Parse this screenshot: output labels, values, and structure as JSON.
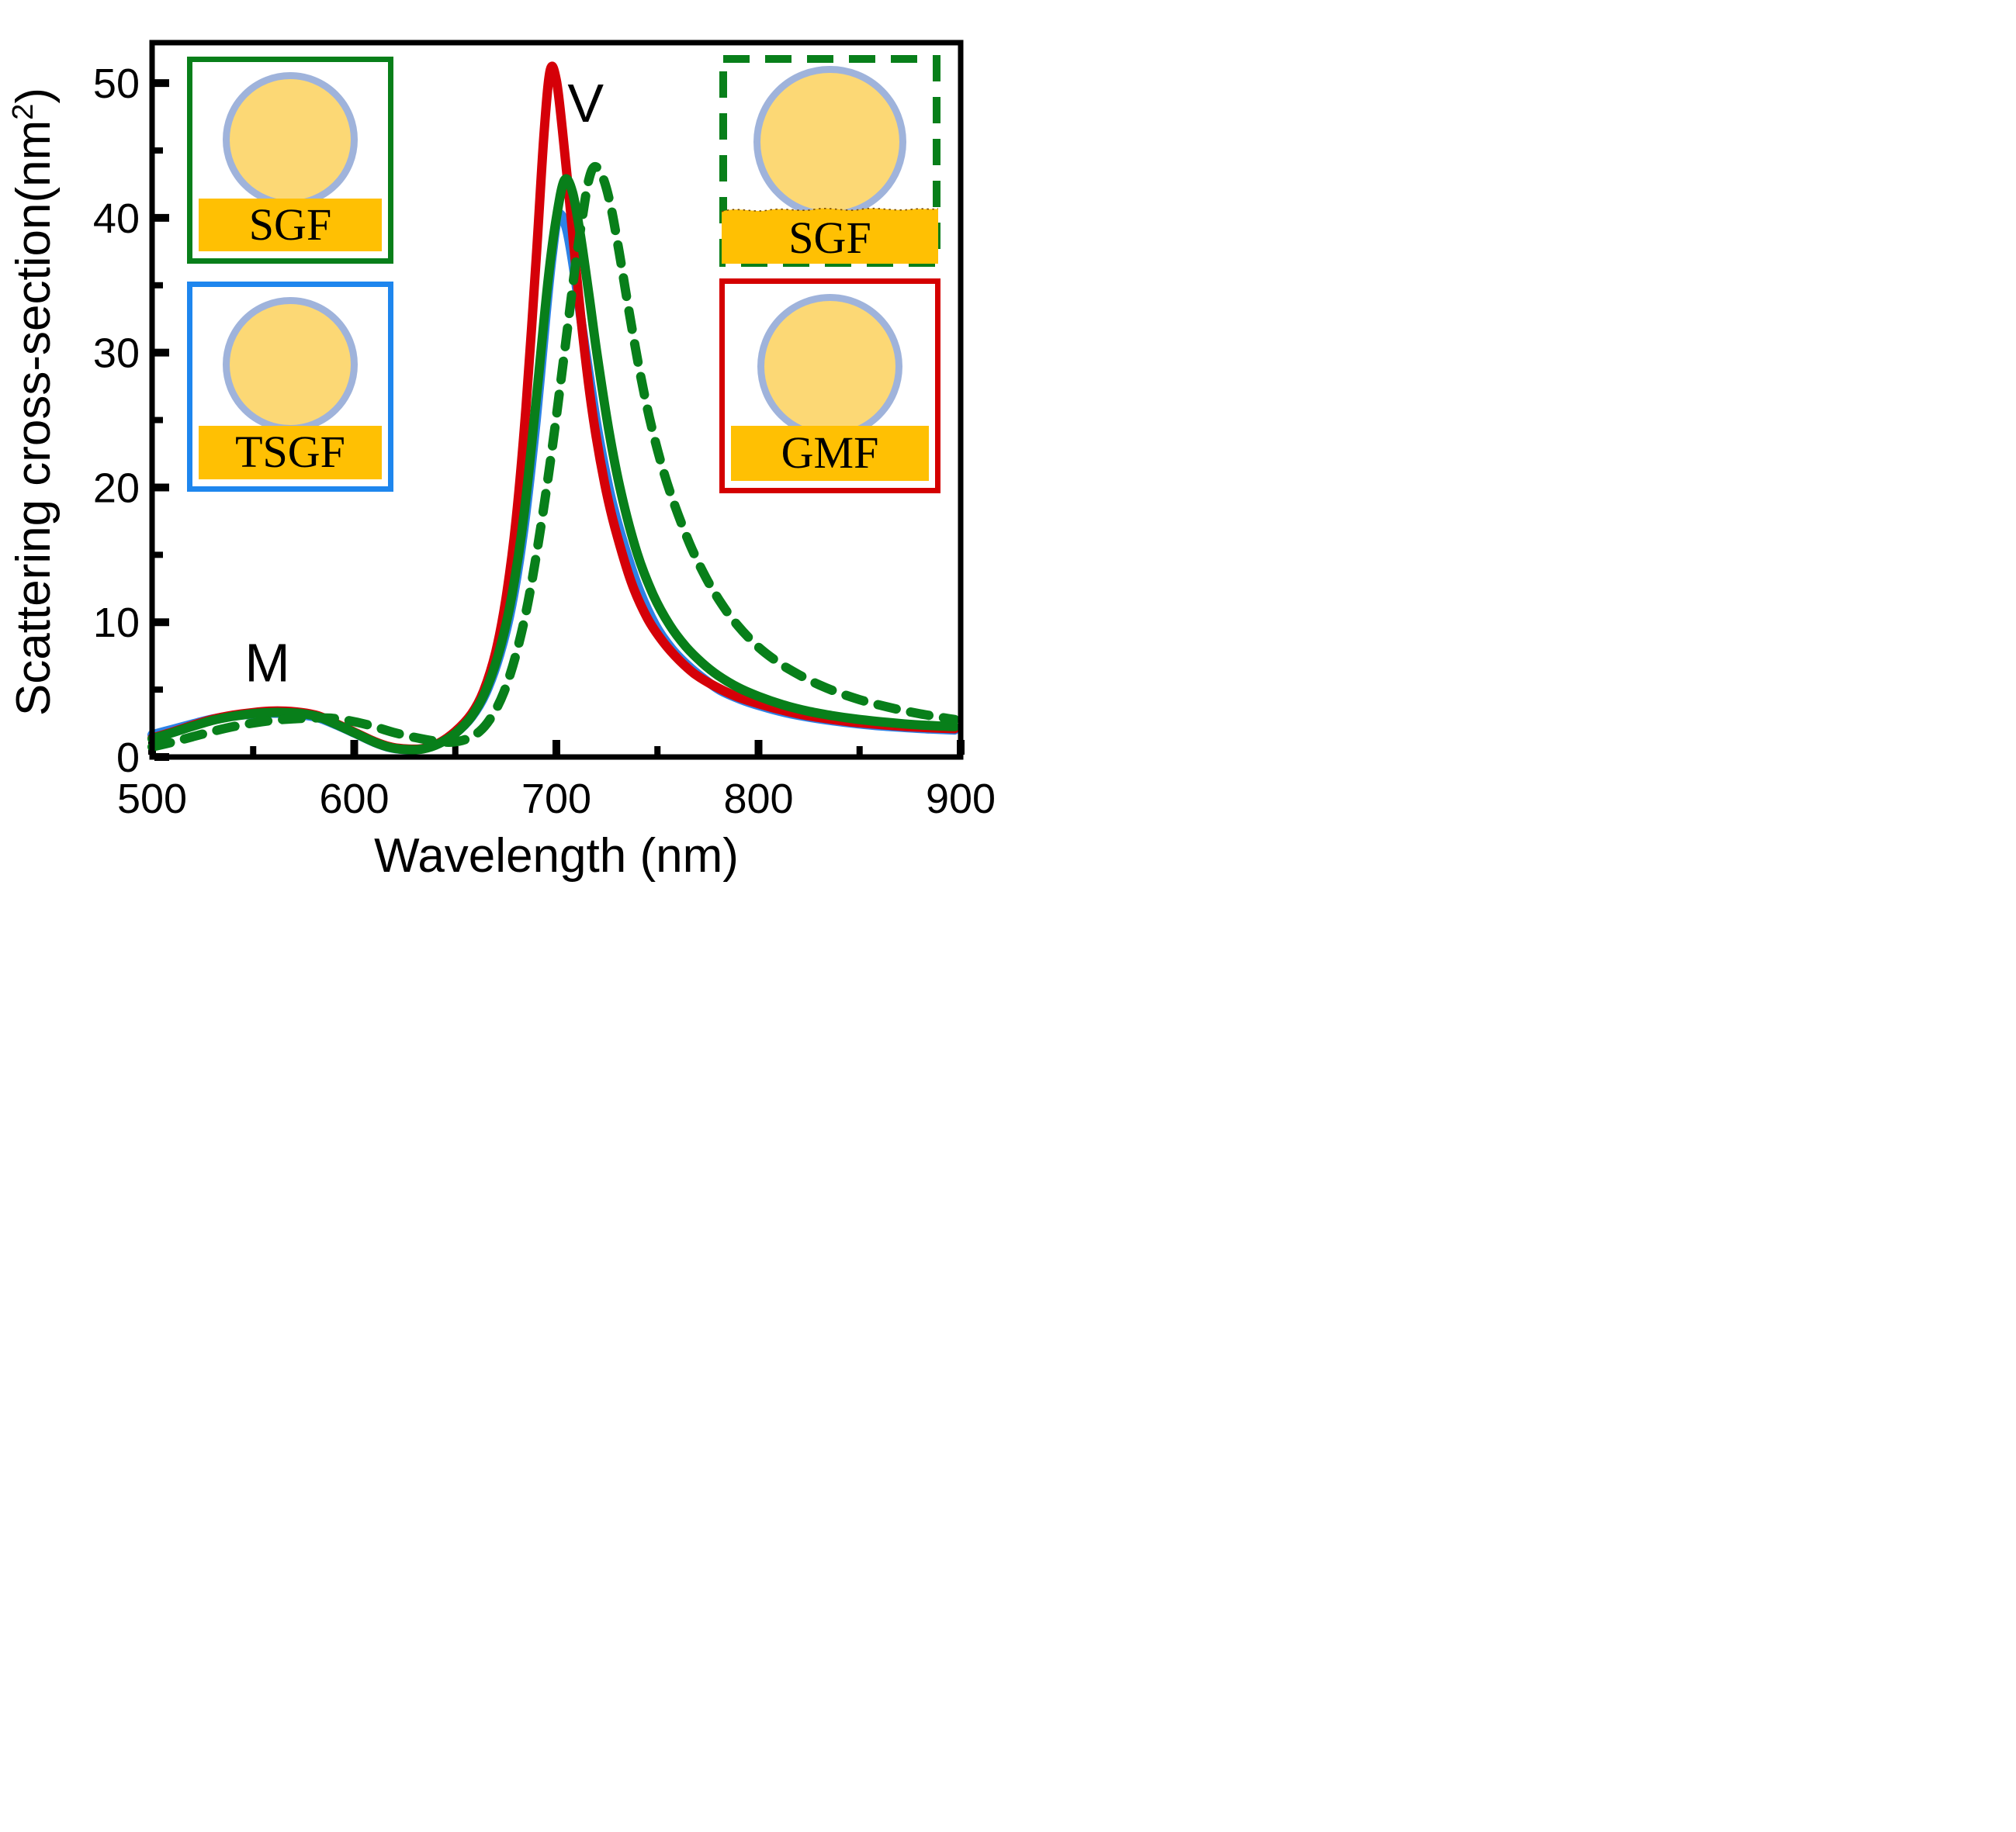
{
  "labels": {
    "xlabel": "Wavelength (nm)",
    "ylabel_main": "Scattering cross-section(nm",
    "ylabel_sup": "2",
    "ylabel_close": ")"
  },
  "colors": {
    "curve_red": "#D50008",
    "curve_green": "#087F1A",
    "curve_blue": "#2D82E6",
    "axis": "#000000",
    "particle_fill": "#FCD875",
    "particle_outline": "#9FB3DB",
    "gold_film": "#FFC003",
    "inset_border_green": "#087F1A",
    "inset_border_blue": "#1E86EE",
    "inset_border_red": "#D40000"
  },
  "insets": [
    {
      "id": "sgf-flat",
      "label": "SGF",
      "border_color": "#087F1A",
      "border_style": "solid",
      "substrate": "flat gold film"
    },
    {
      "id": "tsgf",
      "label": "TSGF",
      "border_color": "#1E86EE",
      "border_style": "solid",
      "substrate": "flat gold film"
    },
    {
      "id": "sgf-rough",
      "label": "SGF",
      "border_color": "#087F1A",
      "border_style": "dashed",
      "substrate": "rough gold film (wavy top edge)"
    },
    {
      "id": "gmf",
      "label": "GMF",
      "border_color": "#D40000",
      "border_style": "solid",
      "substrate": "flat gold film"
    }
  ],
  "chart_data": {
    "type": "line",
    "title": "",
    "xlabel": "Wavelength (nm)",
    "ylabel": "Scattering cross-section(nm2)",
    "xlim": [
      500,
      900
    ],
    "ylim": [
      0,
      53
    ],
    "grid": false,
    "legend_position": "none",
    "x_ticks": [
      500,
      600,
      700,
      800,
      900
    ],
    "x_minor_ticks": [
      550,
      650,
      750,
      850
    ],
    "y_ticks": [
      0,
      10,
      20,
      30,
      40,
      50
    ],
    "y_minor_ticks": [
      5,
      15,
      25,
      35,
      45
    ],
    "annotations": [
      {
        "text": "V",
        "x": 714.5,
        "y": 48.5
      },
      {
        "text": "M",
        "x": 557,
        "y": 7.0
      }
    ],
    "series": [
      {
        "id": "tsgf",
        "name": "TSGF",
        "color": "#2D82E6",
        "line_style": "solid",
        "points": [
          [
            500,
            1.65
          ],
          [
            510,
            2.05
          ],
          [
            520,
            2.45
          ],
          [
            530,
            2.82
          ],
          [
            540,
            3.05
          ],
          [
            550,
            3.18
          ],
          [
            558,
            3.25
          ],
          [
            566,
            3.22
          ],
          [
            574,
            3.12
          ],
          [
            582,
            2.92
          ],
          [
            590,
            2.45
          ],
          [
            600,
            1.78
          ],
          [
            610,
            1.08
          ],
          [
            618,
            0.68
          ],
          [
            626,
            0.55
          ],
          [
            634,
            0.62
          ],
          [
            642,
            1.0
          ],
          [
            650,
            1.75
          ],
          [
            658,
            2.95
          ],
          [
            665,
            4.7
          ],
          [
            672,
            7.6
          ],
          [
            678,
            11.3
          ],
          [
            684,
            17.0
          ],
          [
            690,
            25.0
          ],
          [
            695,
            33.0
          ],
          [
            698,
            37.3
          ],
          [
            701,
            40.2
          ],
          [
            705,
            39.2
          ],
          [
            709,
            35.8
          ],
          [
            713,
            31.6
          ],
          [
            717,
            27.6
          ],
          [
            721,
            23.8
          ],
          [
            727,
            19.3
          ],
          [
            733,
            16.0
          ],
          [
            741,
            12.4
          ],
          [
            749,
            9.8
          ],
          [
            757,
            8.05
          ],
          [
            765,
            6.8
          ],
          [
            773,
            5.8
          ],
          [
            781,
            4.95
          ],
          [
            791,
            4.28
          ],
          [
            801,
            3.78
          ],
          [
            813,
            3.3
          ],
          [
            825,
            2.95
          ],
          [
            837,
            2.68
          ],
          [
            849,
            2.47
          ],
          [
            861,
            2.3
          ],
          [
            873,
            2.18
          ],
          [
            885,
            2.08
          ],
          [
            897,
            2.0
          ]
        ]
      },
      {
        "id": "gmf",
        "name": "GMF",
        "color": "#D50008",
        "line_style": "solid",
        "points": [
          [
            500,
            1.4
          ],
          [
            510,
            1.85
          ],
          [
            520,
            2.35
          ],
          [
            530,
            2.8
          ],
          [
            540,
            3.1
          ],
          [
            550,
            3.3
          ],
          [
            558,
            3.4
          ],
          [
            566,
            3.4
          ],
          [
            574,
            3.3
          ],
          [
            582,
            3.06
          ],
          [
            590,
            2.55
          ],
          [
            600,
            1.85
          ],
          [
            610,
            1.15
          ],
          [
            618,
            0.75
          ],
          [
            626,
            0.6
          ],
          [
            634,
            0.63
          ],
          [
            642,
            1.05
          ],
          [
            650,
            1.9
          ],
          [
            658,
            3.2
          ],
          [
            664,
            4.9
          ],
          [
            670,
            7.8
          ],
          [
            675,
            11.7
          ],
          [
            680,
            17.5
          ],
          [
            685,
            26.0
          ],
          [
            690,
            37.0
          ],
          [
            694,
            46.5
          ],
          [
            697,
            51.0
          ],
          [
            700,
            50.2
          ],
          [
            703,
            46.5
          ],
          [
            707,
            40.5
          ],
          [
            711,
            34.2
          ],
          [
            715,
            28.8
          ],
          [
            719,
            24.4
          ],
          [
            724,
            20.2
          ],
          [
            729,
            17.0
          ],
          [
            737,
            13.0
          ],
          [
            745,
            10.3
          ],
          [
            753,
            8.5
          ],
          [
            761,
            7.15
          ],
          [
            769,
            6.1
          ],
          [
            779,
            5.2
          ],
          [
            789,
            4.5
          ],
          [
            799,
            4.0
          ],
          [
            811,
            3.5
          ],
          [
            823,
            3.1
          ],
          [
            835,
            2.82
          ],
          [
            847,
            2.58
          ],
          [
            859,
            2.42
          ],
          [
            871,
            2.28
          ],
          [
            883,
            2.18
          ],
          [
            897,
            2.1
          ]
        ]
      },
      {
        "id": "sgf",
        "name": "SGF",
        "color": "#087F1A",
        "line_style": "solid",
        "points": [
          [
            500,
            1.35
          ],
          [
            510,
            1.8
          ],
          [
            520,
            2.28
          ],
          [
            530,
            2.72
          ],
          [
            540,
            3.02
          ],
          [
            550,
            3.22
          ],
          [
            558,
            3.3
          ],
          [
            566,
            3.3
          ],
          [
            574,
            3.22
          ],
          [
            582,
            3.0
          ],
          [
            590,
            2.5
          ],
          [
            600,
            1.8
          ],
          [
            610,
            1.1
          ],
          [
            618,
            0.7
          ],
          [
            626,
            0.55
          ],
          [
            634,
            0.6
          ],
          [
            642,
            1.0
          ],
          [
            650,
            1.75
          ],
          [
            658,
            3.0
          ],
          [
            665,
            4.9
          ],
          [
            672,
            8.0
          ],
          [
            678,
            12.0
          ],
          [
            684,
            18.0
          ],
          [
            690,
            26.5
          ],
          [
            696,
            35.5
          ],
          [
            700,
            40.0
          ],
          [
            704,
            42.8
          ],
          [
            708,
            41.9
          ],
          [
            712,
            38.6
          ],
          [
            716,
            34.4
          ],
          [
            720,
            30.0
          ],
          [
            726,
            24.2
          ],
          [
            732,
            19.6
          ],
          [
            740,
            15.1
          ],
          [
            748,
            12.0
          ],
          [
            756,
            9.8
          ],
          [
            764,
            8.2
          ],
          [
            772,
            7.0
          ],
          [
            780,
            6.05
          ],
          [
            790,
            5.15
          ],
          [
            800,
            4.5
          ],
          [
            812,
            3.88
          ],
          [
            824,
            3.42
          ],
          [
            836,
            3.08
          ],
          [
            848,
            2.82
          ],
          [
            860,
            2.62
          ],
          [
            872,
            2.46
          ],
          [
            884,
            2.34
          ],
          [
            897,
            2.25
          ]
        ]
      },
      {
        "id": "sgf-rough",
        "name": "SGF (rough film)",
        "color": "#087F1A",
        "line_style": "dashed",
        "points": [
          [
            500,
            0.75
          ],
          [
            510,
            1.1
          ],
          [
            520,
            1.5
          ],
          [
            530,
            1.9
          ],
          [
            540,
            2.25
          ],
          [
            550,
            2.52
          ],
          [
            560,
            2.72
          ],
          [
            570,
            2.83
          ],
          [
            580,
            2.9
          ],
          [
            590,
            2.86
          ],
          [
            600,
            2.62
          ],
          [
            610,
            2.25
          ],
          [
            620,
            1.8
          ],
          [
            630,
            1.45
          ],
          [
            640,
            1.18
          ],
          [
            648,
            1.1
          ],
          [
            655,
            1.3
          ],
          [
            662,
            1.9
          ],
          [
            668,
            3.0
          ],
          [
            674,
            4.8
          ],
          [
            680,
            7.6
          ],
          [
            686,
            11.5
          ],
          [
            692,
            16.8
          ],
          [
            698,
            23.0
          ],
          [
            704,
            30.0
          ],
          [
            709,
            36.0
          ],
          [
            713,
            40.2
          ],
          [
            716,
            42.8
          ],
          [
            719,
            43.8
          ],
          [
            723,
            43.0
          ],
          [
            727,
            40.8
          ],
          [
            731,
            37.5
          ],
          [
            736,
            33.0
          ],
          [
            741,
            28.8
          ],
          [
            746,
            25.2
          ],
          [
            752,
            21.7
          ],
          [
            758,
            18.9
          ],
          [
            766,
            15.8
          ],
          [
            774,
            13.3
          ],
          [
            782,
            11.3
          ],
          [
            790,
            9.7
          ],
          [
            800,
            8.15
          ],
          [
            810,
            7.0
          ],
          [
            820,
            6.1
          ],
          [
            830,
            5.35
          ],
          [
            840,
            4.75
          ],
          [
            850,
            4.25
          ],
          [
            860,
            3.85
          ],
          [
            870,
            3.5
          ],
          [
            880,
            3.2
          ],
          [
            890,
            2.95
          ],
          [
            897,
            2.78
          ]
        ]
      }
    ]
  }
}
